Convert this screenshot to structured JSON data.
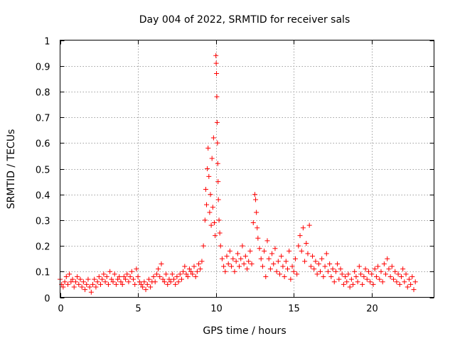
{
  "chart_data": {
    "type": "scatter",
    "title": "Day 004 of 2022, SRMTID for receiver sals",
    "xlabel": "GPS time / hours",
    "ylabel": "SRMTID / TECUs",
    "xlim": [
      0,
      24
    ],
    "ylim": [
      0,
      1
    ],
    "xticks": [
      0,
      5,
      10,
      15,
      20
    ],
    "xtick_labels": [
      "0",
      "5",
      "10",
      "15",
      "20"
    ],
    "yticks": [
      0,
      0.1,
      0.2,
      0.3,
      0.4,
      0.5,
      0.6,
      0.7,
      0.8,
      0.9,
      1
    ],
    "ytick_labels": [
      "0",
      "0.1",
      "0.2",
      "0.3",
      "0.4",
      "0.5",
      "0.6",
      "0.7",
      "0.8",
      "0.9",
      "1"
    ],
    "grid": true,
    "marker": "+",
    "color": "#ff0000",
    "series": [
      {
        "name": "SRMTID",
        "points": [
          [
            0.0,
            0.07
          ],
          [
            0.1,
            0.05
          ],
          [
            0.2,
            0.04
          ],
          [
            0.3,
            0.06
          ],
          [
            0.4,
            0.08
          ],
          [
            0.5,
            0.05
          ],
          [
            0.6,
            0.09
          ],
          [
            0.7,
            0.06
          ],
          [
            0.8,
            0.07
          ],
          [
            0.9,
            0.04
          ],
          [
            1.0,
            0.06
          ],
          [
            1.1,
            0.08
          ],
          [
            1.2,
            0.05
          ],
          [
            1.3,
            0.07
          ],
          [
            1.4,
            0.04
          ],
          [
            1.5,
            0.06
          ],
          [
            1.6,
            0.03
          ],
          [
            1.7,
            0.05
          ],
          [
            1.8,
            0.07
          ],
          [
            1.9,
            0.04
          ],
          [
            2.0,
            0.02
          ],
          [
            2.1,
            0.05
          ],
          [
            2.2,
            0.07
          ],
          [
            2.3,
            0.04
          ],
          [
            2.4,
            0.06
          ],
          [
            2.5,
            0.08
          ],
          [
            2.6,
            0.05
          ],
          [
            2.7,
            0.07
          ],
          [
            2.8,
            0.09
          ],
          [
            2.9,
            0.06
          ],
          [
            3.0,
            0.08
          ],
          [
            3.1,
            0.05
          ],
          [
            3.2,
            0.1
          ],
          [
            3.3,
            0.07
          ],
          [
            3.4,
            0.06
          ],
          [
            3.5,
            0.09
          ],
          [
            3.6,
            0.05
          ],
          [
            3.7,
            0.07
          ],
          [
            3.8,
            0.08
          ],
          [
            3.9,
            0.06
          ],
          [
            4.0,
            0.05
          ],
          [
            4.1,
            0.08
          ],
          [
            4.2,
            0.07
          ],
          [
            4.3,
            0.09
          ],
          [
            4.4,
            0.06
          ],
          [
            4.5,
            0.08
          ],
          [
            4.6,
            0.1
          ],
          [
            4.7,
            0.07
          ],
          [
            4.8,
            0.05
          ],
          [
            4.9,
            0.11
          ],
          [
            5.0,
            0.08
          ],
          [
            5.1,
            0.06
          ],
          [
            5.2,
            0.05
          ],
          [
            5.3,
            0.04
          ],
          [
            5.4,
            0.06
          ],
          [
            5.5,
            0.03
          ],
          [
            5.6,
            0.05
          ],
          [
            5.7,
            0.07
          ],
          [
            5.8,
            0.04
          ],
          [
            5.9,
            0.06
          ],
          [
            6.0,
            0.08
          ],
          [
            6.1,
            0.06
          ],
          [
            6.2,
            0.09
          ],
          [
            6.3,
            0.11
          ],
          [
            6.4,
            0.08
          ],
          [
            6.5,
            0.13
          ],
          [
            6.6,
            0.07
          ],
          [
            6.7,
            0.06
          ],
          [
            6.8,
            0.09
          ],
          [
            6.9,
            0.05
          ],
          [
            7.0,
            0.07
          ],
          [
            7.1,
            0.06
          ],
          [
            7.2,
            0.09
          ],
          [
            7.3,
            0.07
          ],
          [
            7.4,
            0.05
          ],
          [
            7.5,
            0.08
          ],
          [
            7.6,
            0.06
          ],
          [
            7.7,
            0.09
          ],
          [
            7.8,
            0.07
          ],
          [
            7.9,
            0.1
          ],
          [
            8.0,
            0.12
          ],
          [
            8.1,
            0.09
          ],
          [
            8.2,
            0.08
          ],
          [
            8.3,
            0.11
          ],
          [
            8.4,
            0.1
          ],
          [
            8.5,
            0.09
          ],
          [
            8.6,
            0.12
          ],
          [
            8.7,
            0.08
          ],
          [
            8.8,
            0.1
          ],
          [
            8.9,
            0.13
          ],
          [
            9.0,
            0.11
          ],
          [
            9.1,
            0.14
          ],
          [
            9.2,
            0.2
          ],
          [
            9.3,
            0.3
          ],
          [
            9.35,
            0.42
          ],
          [
            9.4,
            0.36
          ],
          [
            9.45,
            0.5
          ],
          [
            9.5,
            0.58
          ],
          [
            9.55,
            0.47
          ],
          [
            9.6,
            0.33
          ],
          [
            9.65,
            0.4
          ],
          [
            9.7,
            0.28
          ],
          [
            9.75,
            0.54
          ],
          [
            9.8,
            0.35
          ],
          [
            9.85,
            0.62
          ],
          [
            9.9,
            0.29
          ],
          [
            9.95,
            0.24
          ],
          [
            10.0,
            0.94
          ],
          [
            10.02,
            0.91
          ],
          [
            10.04,
            0.87
          ],
          [
            10.06,
            0.78
          ],
          [
            10.08,
            0.68
          ],
          [
            10.1,
            0.6
          ],
          [
            10.12,
            0.52
          ],
          [
            10.14,
            0.45
          ],
          [
            10.16,
            0.38
          ],
          [
            10.2,
            0.3
          ],
          [
            10.25,
            0.25
          ],
          [
            10.3,
            0.2
          ],
          [
            10.4,
            0.15
          ],
          [
            10.5,
            0.12
          ],
          [
            10.6,
            0.1
          ],
          [
            10.7,
            0.16
          ],
          [
            10.8,
            0.13
          ],
          [
            10.9,
            0.18
          ],
          [
            11.0,
            0.12
          ],
          [
            11.1,
            0.15
          ],
          [
            11.2,
            0.1
          ],
          [
            11.3,
            0.14
          ],
          [
            11.4,
            0.17
          ],
          [
            11.5,
            0.12
          ],
          [
            11.6,
            0.15
          ],
          [
            11.7,
            0.2
          ],
          [
            11.8,
            0.13
          ],
          [
            11.9,
            0.16
          ],
          [
            12.0,
            0.11
          ],
          [
            12.1,
            0.14
          ],
          [
            12.2,
            0.18
          ],
          [
            12.3,
            0.13
          ],
          [
            12.4,
            0.29
          ],
          [
            12.5,
            0.4
          ],
          [
            12.55,
            0.38
          ],
          [
            12.6,
            0.33
          ],
          [
            12.65,
            0.27
          ],
          [
            12.7,
            0.23
          ],
          [
            12.8,
            0.19
          ],
          [
            12.9,
            0.15
          ],
          [
            13.0,
            0.12
          ],
          [
            13.1,
            0.18
          ],
          [
            13.2,
            0.08
          ],
          [
            13.3,
            0.22
          ],
          [
            13.4,
            0.15
          ],
          [
            13.5,
            0.11
          ],
          [
            13.6,
            0.17
          ],
          [
            13.7,
            0.13
          ],
          [
            13.8,
            0.19
          ],
          [
            13.9,
            0.1
          ],
          [
            14.0,
            0.14
          ],
          [
            14.1,
            0.09
          ],
          [
            14.2,
            0.16
          ],
          [
            14.3,
            0.12
          ],
          [
            14.4,
            0.08
          ],
          [
            14.5,
            0.14
          ],
          [
            14.6,
            0.11
          ],
          [
            14.7,
            0.18
          ],
          [
            14.8,
            0.07
          ],
          [
            14.9,
            0.12
          ],
          [
            15.0,
            0.1
          ],
          [
            15.1,
            0.15
          ],
          [
            15.2,
            0.09
          ],
          [
            15.3,
            0.2
          ],
          [
            15.4,
            0.24
          ],
          [
            15.5,
            0.18
          ],
          [
            15.6,
            0.27
          ],
          [
            15.7,
            0.14
          ],
          [
            15.8,
            0.21
          ],
          [
            15.9,
            0.17
          ],
          [
            16.0,
            0.28
          ],
          [
            16.1,
            0.12
          ],
          [
            16.2,
            0.16
          ],
          [
            16.3,
            0.11
          ],
          [
            16.4,
            0.14
          ],
          [
            16.5,
            0.09
          ],
          [
            16.6,
            0.13
          ],
          [
            16.7,
            0.1
          ],
          [
            16.8,
            0.15
          ],
          [
            16.9,
            0.08
          ],
          [
            17.0,
            0.12
          ],
          [
            17.1,
            0.17
          ],
          [
            17.2,
            0.1
          ],
          [
            17.3,
            0.13
          ],
          [
            17.4,
            0.08
          ],
          [
            17.5,
            0.11
          ],
          [
            17.6,
            0.06
          ],
          [
            17.7,
            0.1
          ],
          [
            17.8,
            0.13
          ],
          [
            17.9,
            0.07
          ],
          [
            18.0,
            0.11
          ],
          [
            18.1,
            0.09
          ],
          [
            18.2,
            0.05
          ],
          [
            18.3,
            0.08
          ],
          [
            18.4,
            0.06
          ],
          [
            18.5,
            0.09
          ],
          [
            18.6,
            0.04
          ],
          [
            18.7,
            0.07
          ],
          [
            18.8,
            0.05
          ],
          [
            18.9,
            0.1
          ],
          [
            19.0,
            0.08
          ],
          [
            19.1,
            0.06
          ],
          [
            19.2,
            0.12
          ],
          [
            19.3,
            0.09
          ],
          [
            19.4,
            0.05
          ],
          [
            19.5,
            0.08
          ],
          [
            19.6,
            0.11
          ],
          [
            19.7,
            0.07
          ],
          [
            19.8,
            0.1
          ],
          [
            19.9,
            0.06
          ],
          [
            20.0,
            0.09
          ],
          [
            20.1,
            0.05
          ],
          [
            20.2,
            0.11
          ],
          [
            20.3,
            0.08
          ],
          [
            20.4,
            0.12
          ],
          [
            20.5,
            0.07
          ],
          [
            20.6,
            0.1
          ],
          [
            20.7,
            0.06
          ],
          [
            20.8,
            0.13
          ],
          [
            20.9,
            0.09
          ],
          [
            21.0,
            0.15
          ],
          [
            21.1,
            0.11
          ],
          [
            21.2,
            0.08
          ],
          [
            21.3,
            0.12
          ],
          [
            21.4,
            0.07
          ],
          [
            21.5,
            0.1
          ],
          [
            21.6,
            0.06
          ],
          [
            21.7,
            0.09
          ],
          [
            21.8,
            0.05
          ],
          [
            21.9,
            0.08
          ],
          [
            22.0,
            0.11
          ],
          [
            22.1,
            0.06
          ],
          [
            22.2,
            0.09
          ],
          [
            22.3,
            0.04
          ],
          [
            22.4,
            0.07
          ],
          [
            22.5,
            0.05
          ],
          [
            22.6,
            0.08
          ],
          [
            22.7,
            0.03
          ],
          [
            22.8,
            0.06
          ]
        ]
      }
    ]
  }
}
